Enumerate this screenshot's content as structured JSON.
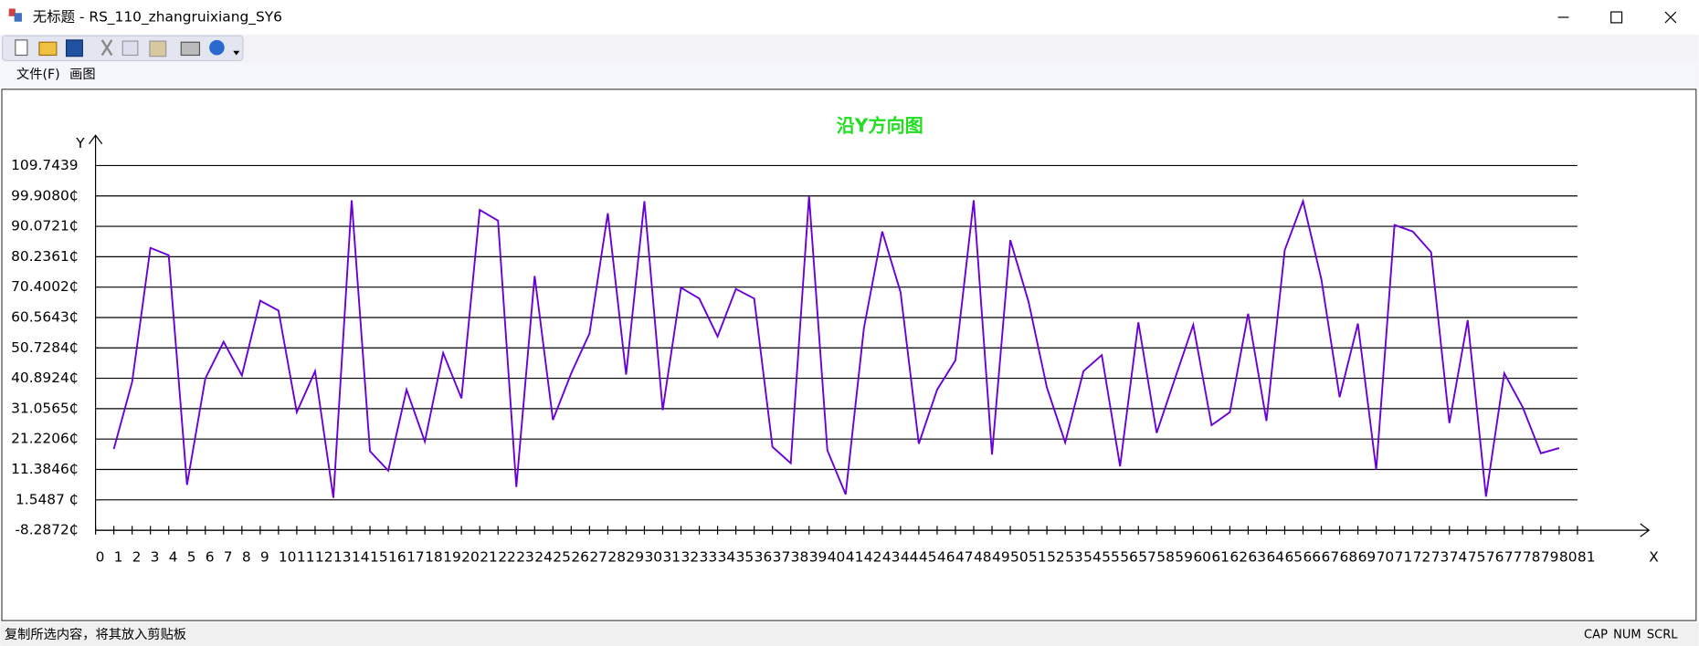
{
  "window": {
    "title": "无标题 - RS_110_zhangruixiang_SY6",
    "menu": [
      "文件(F)",
      "画图"
    ],
    "status": "复制所选内容，将其放入剪贴板",
    "indicators": [
      "CAP",
      "NUM",
      "SCRL"
    ]
  },
  "chart_data": {
    "type": "line",
    "title": "沿Y方向图",
    "y_label": "Y",
    "x_label": "X",
    "x": [
      1,
      2,
      3,
      4,
      5,
      6,
      7,
      8,
      9,
      10,
      11,
      12,
      13,
      14,
      15,
      16,
      17,
      18,
      19,
      20,
      21,
      22,
      23,
      24,
      25,
      26,
      27,
      28,
      29,
      30,
      31,
      32,
      33,
      34,
      35,
      36,
      37,
      38,
      39,
      40,
      41,
      42,
      43,
      44,
      45,
      46,
      47,
      48,
      49,
      50,
      51,
      52,
      53,
      54,
      55,
      56,
      57,
      58,
      59,
      60,
      61,
      62,
      63,
      64,
      65,
      66,
      67,
      68,
      69,
      70,
      71,
      72,
      73,
      74,
      75,
      76,
      77,
      78,
      79,
      80
    ],
    "values": [
      18.0,
      39.7,
      83.1,
      80.7,
      6.4,
      40.8,
      52.7,
      41.8,
      66.0,
      62.8,
      29.9,
      43.2,
      2.2,
      98.5,
      17.3,
      11.0,
      37.2,
      20.4,
      49.1,
      34.4,
      95.4,
      91.9,
      5.7,
      74.0,
      27.4,
      42.5,
      55.4,
      94.3,
      42.1,
      98.2,
      30.6,
      70.2,
      66.7,
      54.4,
      69.8,
      66.7,
      18.7,
      13.4,
      99.9,
      17.6,
      3.3,
      57.2,
      88.4,
      68.8,
      19.7,
      37.2,
      46.7,
      98.5,
      16.2,
      85.6,
      65.6,
      37.9,
      20.1,
      43.2,
      48.4,
      12.4,
      59.0,
      23.2,
      40.8,
      58.2,
      25.7,
      29.9,
      61.8,
      27.1,
      82.4,
      98.2,
      73.0,
      34.8,
      58.6,
      11.3,
      90.5,
      88.4,
      81.7,
      26.4,
      59.7,
      2.6,
      42.5,
      31.6,
      16.6,
      18.3
    ],
    "color": "#6a00d8",
    "title_color": "#22dd22",
    "xlim": [
      0,
      81
    ],
    "xticks": [
      0,
      1,
      2,
      3,
      4,
      5,
      6,
      7,
      8,
      9,
      10,
      11,
      12,
      13,
      14,
      15,
      16,
      17,
      18,
      19,
      20,
      21,
      22,
      23,
      24,
      25,
      26,
      27,
      28,
      29,
      30,
      31,
      32,
      33,
      34,
      35,
      36,
      37,
      38,
      39,
      40,
      41,
      42,
      43,
      44,
      45,
      46,
      47,
      48,
      49,
      50,
      51,
      52,
      53,
      54,
      55,
      56,
      57,
      58,
      59,
      60,
      61,
      62,
      63,
      64,
      65,
      66,
      67,
      68,
      69,
      70,
      71,
      72,
      73,
      74,
      75,
      76,
      77,
      78,
      79,
      80,
      81
    ],
    "ylim": [
      -8.2872,
      109.7439
    ],
    "yticks": [
      {
        "value": -8.2872,
        "label": "-8.2872₵"
      },
      {
        "value": 1.5487,
        "label": "1.5487 ₵"
      },
      {
        "value": 11.3846,
        "label": "11.3846₵"
      },
      {
        "value": 21.2206,
        "label": "21.2206₵"
      },
      {
        "value": 31.0565,
        "label": "31.0565₵"
      },
      {
        "value": 40.8924,
        "label": "40.8924₵"
      },
      {
        "value": 50.7284,
        "label": "50.7284₵"
      },
      {
        "value": 60.5643,
        "label": "60.5643₵"
      },
      {
        "value": 70.4002,
        "label": "70.4002₵"
      },
      {
        "value": 80.2361,
        "label": "80.2361₵"
      },
      {
        "value": 90.0721,
        "label": "90.0721₵"
      },
      {
        "value": 99.908,
        "label": "99.9080₵"
      },
      109.7439
    ],
    "grid": true
  }
}
